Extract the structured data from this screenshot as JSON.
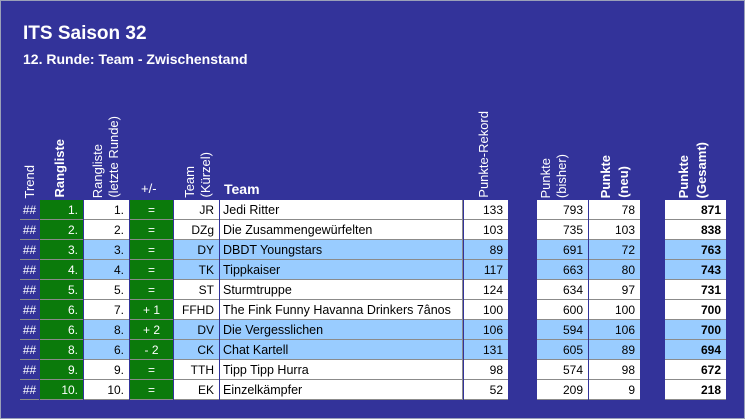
{
  "title": "ITS Saison 32",
  "subtitle": "12. Runde: Team - Zwischenstand",
  "headers": {
    "trend": "Trend",
    "rangliste": "Rangliste",
    "rangliste_letzte_1": "Rangliste",
    "rangliste_letzte_2": "(letzte Runde)",
    "plusminus": "+/-",
    "team_kuerzel_1": "Team",
    "team_kuerzel_2": "(Kürzel)",
    "team": "Team",
    "rekord": "Punkte-Rekord",
    "bisher_1": "Punkte",
    "bisher_2": "(bisher)",
    "neu_1": "Punkte",
    "neu_2": "(neu)",
    "gesamt_1": "Punkte",
    "gesamt_2": "(Gesamt)"
  },
  "colors": {
    "frame": "#33339a",
    "row_alt": "#99ccff",
    "rank_green": "#0b7a0b"
  },
  "rows": [
    {
      "trend": "##",
      "rank": "1.",
      "last": "1.",
      "diff": "=",
      "abbr": "JR",
      "team": "Jedi Ritter",
      "record": "133",
      "bisher": "793",
      "neu": "78",
      "gesamt": "871"
    },
    {
      "trend": "##",
      "rank": "2.",
      "last": "2.",
      "diff": "=",
      "abbr": "DZg",
      "team": "Die Zusammengewürfelten",
      "record": "103",
      "bisher": "735",
      "neu": "103",
      "gesamt": "838"
    },
    {
      "trend": "##",
      "rank": "3.",
      "last": "3.",
      "diff": "=",
      "abbr": "DY",
      "team": "DBDT Youngstars",
      "record": "89",
      "bisher": "691",
      "neu": "72",
      "gesamt": "763"
    },
    {
      "trend": "##",
      "rank": "4.",
      "last": "4.",
      "diff": "=",
      "abbr": "TK",
      "team": "Tippkaiser",
      "record": "117",
      "bisher": "663",
      "neu": "80",
      "gesamt": "743"
    },
    {
      "trend": "##",
      "rank": "5.",
      "last": "5.",
      "diff": "=",
      "abbr": "ST",
      "team": "Sturmtruppe",
      "record": "124",
      "bisher": "634",
      "neu": "97",
      "gesamt": "731"
    },
    {
      "trend": "##",
      "rank": "6.",
      "last": "7.",
      "diff": "+ 1",
      "abbr": "FFHD",
      "team": "The Fink Funny Havanna Drinkers 7ânos",
      "record": "100",
      "bisher": "600",
      "neu": "100",
      "gesamt": "700"
    },
    {
      "trend": "##",
      "rank": "6.",
      "last": "8.",
      "diff": "+ 2",
      "abbr": "DV",
      "team": "Die Vergesslichen",
      "record": "106",
      "bisher": "594",
      "neu": "106",
      "gesamt": "700"
    },
    {
      "trend": "##",
      "rank": "8.",
      "last": "6.",
      "diff": "- 2",
      "abbr": "CK",
      "team": "Chat Kartell",
      "record": "131",
      "bisher": "605",
      "neu": "89",
      "gesamt": "694"
    },
    {
      "trend": "##",
      "rank": "9.",
      "last": "9.",
      "diff": "=",
      "abbr": "TTH",
      "team": "Tipp Tipp Hurra",
      "record": "98",
      "bisher": "574",
      "neu": "98",
      "gesamt": "672"
    },
    {
      "trend": "##",
      "rank": "10.",
      "last": "10.",
      "diff": "=",
      "abbr": "EK",
      "team": "Einzelkämpfer",
      "record": "52",
      "bisher": "209",
      "neu": "9",
      "gesamt": "218"
    }
  ]
}
